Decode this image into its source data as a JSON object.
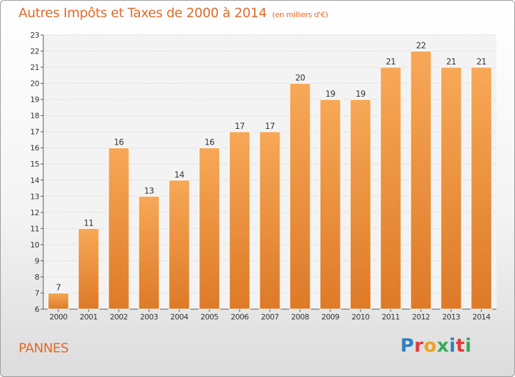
{
  "header": {
    "title": "Autres Impôts et Taxes de 2000 à 2014",
    "unit": "(en milliers d'€)"
  },
  "footer": {
    "place": "PANNES",
    "logo": "Proxiti",
    "logo_colors": [
      "#2f7fc1",
      "#e03a3a",
      "#f0a020",
      "#3aa85a",
      "#2f7fc1",
      "#e03a3a",
      "#3aa85a"
    ]
  },
  "colors": {
    "bar_light": "#f7a857",
    "bar_dark": "#dd7a28",
    "axis": "#555555",
    "grid": "#c8c8c8"
  },
  "chart_data": {
    "type": "bar",
    "categories": [
      "2000",
      "2001",
      "2002",
      "2003",
      "2004",
      "2005",
      "2006",
      "2007",
      "2008",
      "2009",
      "2010",
      "2011",
      "2012",
      "2013",
      "2014"
    ],
    "values": [
      7,
      11,
      16,
      13,
      14,
      16,
      17,
      17,
      20,
      19,
      19,
      21,
      22,
      21,
      21
    ],
    "title": "Autres Impôts et Taxes de 2000 à 2014",
    "xlabel": "",
    "ylabel": "",
    "ylim": [
      6,
      23
    ],
    "yticks": [
      6,
      7,
      8,
      9,
      10,
      11,
      12,
      13,
      14,
      15,
      16,
      17,
      18,
      19,
      20,
      21,
      22,
      23
    ],
    "grid": true,
    "legend": "none"
  }
}
